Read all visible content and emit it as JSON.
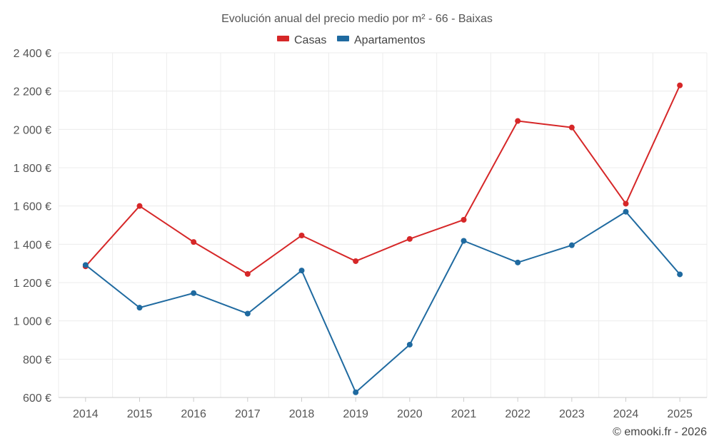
{
  "chart_data": {
    "type": "line",
    "title": "Evolución anual del precio medio por m² - 66 - Baixas",
    "categories": [
      "2014",
      "2015",
      "2016",
      "2017",
      "2018",
      "2019",
      "2020",
      "2021",
      "2022",
      "2023",
      "2024",
      "2025"
    ],
    "series": [
      {
        "name": "Casas",
        "color": "#d62728",
        "values": [
          1285,
          1600,
          1412,
          1245,
          1446,
          1312,
          1428,
          1528,
          2044,
          2010,
          1612,
          2230
        ]
      },
      {
        "name": "Apartamentos",
        "color": "#1f6aa0",
        "values": [
          1292,
          1069,
          1145,
          1038,
          1263,
          627,
          876,
          1418,
          1305,
          1395,
          1570,
          1243
        ]
      }
    ],
    "y_ticks": [
      "600 €",
      "800 €",
      "1 000 €",
      "1 200 €",
      "1 400 €",
      "1 600 €",
      "1 800 €",
      "2 000 €",
      "2 200 €",
      "2 400 €"
    ],
    "y_tick_values": [
      600,
      800,
      1000,
      1200,
      1400,
      1600,
      1800,
      2000,
      2200,
      2400
    ],
    "ylim": [
      600,
      2400
    ],
    "xlabel": "",
    "ylabel": "",
    "grid": true,
    "legend_position": "top-center"
  },
  "credit": "© emooki.fr - 2026"
}
